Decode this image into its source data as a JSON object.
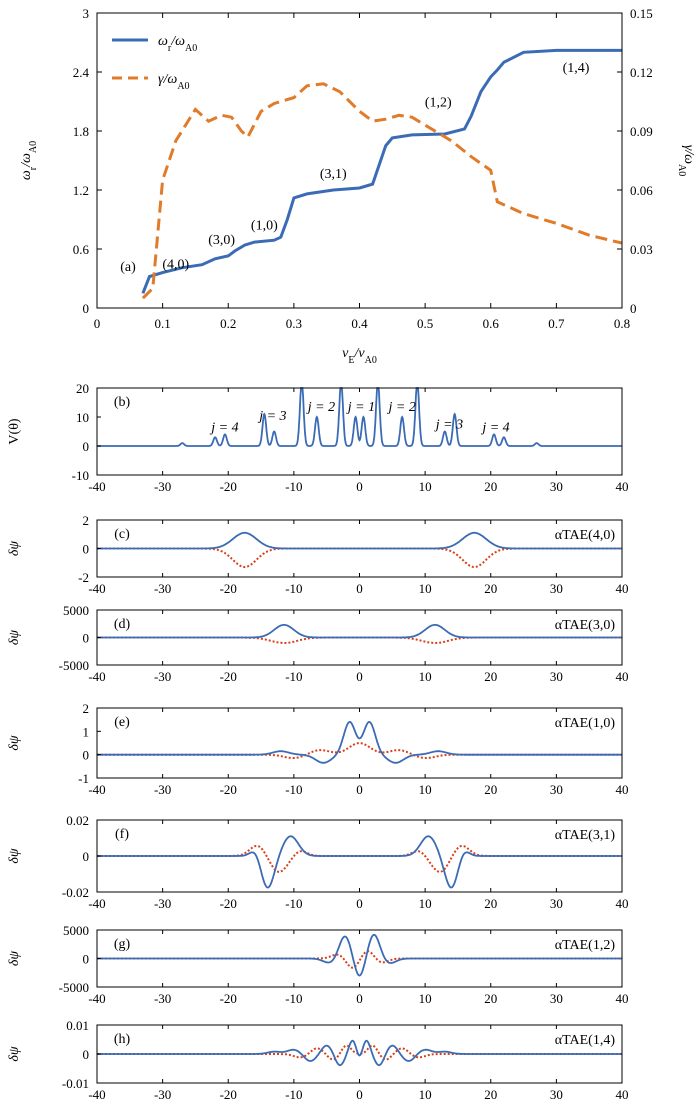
{
  "colors": {
    "omega": "#3b6bb5",
    "gamma": "#e07b2a",
    "red": "#d9401a",
    "axis": "#000000"
  },
  "chart_data": [
    {
      "id": "a",
      "type": "line",
      "panel_label": "(a)",
      "xlabel": "vE/vA0",
      "ylabel_left": "ωr/ωA0",
      "ylabel_right": "γ/ωA0",
      "xlim": [
        0,
        0.8
      ],
      "ylim_left": [
        0,
        3
      ],
      "ylim_right": [
        0,
        0.15
      ],
      "xticks": [
        "0",
        "0.1",
        "0.2",
        "0.3",
        "0.4",
        "0.5",
        "0.6",
        "0.7",
        "0.8"
      ],
      "yticks_left": [
        "0",
        "0.6",
        "1.2",
        "1.8",
        "2.4",
        "3"
      ],
      "yticks_right": [
        "0",
        "0.03",
        "0.06",
        "0.09",
        "0.12",
        "0.15"
      ],
      "legend": [
        "ωr/ωA0",
        "γ/ωA0"
      ],
      "legend_position": "top-left",
      "series": [
        {
          "name": "ωr/ωA0",
          "axis": "left",
          "style": "solid",
          "points": [
            [
              0.07,
              0.15
            ],
            [
              0.08,
              0.32
            ],
            [
              0.1,
              0.36
            ],
            [
              0.13,
              0.41
            ],
            [
              0.16,
              0.44
            ],
            [
              0.18,
              0.5
            ],
            [
              0.2,
              0.53
            ],
            [
              0.21,
              0.58
            ],
            [
              0.225,
              0.64
            ],
            [
              0.24,
              0.67
            ],
            [
              0.27,
              0.69
            ],
            [
              0.28,
              0.72
            ],
            [
              0.29,
              0.9
            ],
            [
              0.3,
              1.12
            ],
            [
              0.32,
              1.16
            ],
            [
              0.36,
              1.2
            ],
            [
              0.4,
              1.22
            ],
            [
              0.42,
              1.26
            ],
            [
              0.44,
              1.65
            ],
            [
              0.45,
              1.73
            ],
            [
              0.48,
              1.76
            ],
            [
              0.53,
              1.77
            ],
            [
              0.56,
              1.82
            ],
            [
              0.57,
              1.95
            ],
            [
              0.585,
              2.2
            ],
            [
              0.6,
              2.35
            ],
            [
              0.61,
              2.42
            ],
            [
              0.62,
              2.5
            ],
            [
              0.65,
              2.6
            ],
            [
              0.7,
              2.62
            ],
            [
              0.8,
              2.62
            ]
          ]
        },
        {
          "name": "γ/ωA0",
          "axis": "right",
          "style": "dashed",
          "points": [
            [
              0.07,
              0.005
            ],
            [
              0.085,
              0.01
            ],
            [
              0.1,
              0.065
            ],
            [
              0.12,
              0.085
            ],
            [
              0.15,
              0.101
            ],
            [
              0.17,
              0.095
            ],
            [
              0.19,
              0.098
            ],
            [
              0.205,
              0.097
            ],
            [
              0.22,
              0.09
            ],
            [
              0.23,
              0.087
            ],
            [
              0.25,
              0.1
            ],
            [
              0.27,
              0.104
            ],
            [
              0.3,
              0.107
            ],
            [
              0.32,
              0.113
            ],
            [
              0.345,
              0.114
            ],
            [
              0.37,
              0.11
            ],
            [
              0.4,
              0.1
            ],
            [
              0.42,
              0.095
            ],
            [
              0.44,
              0.096
            ],
            [
              0.46,
              0.098
            ],
            [
              0.48,
              0.097
            ],
            [
              0.5,
              0.093
            ],
            [
              0.54,
              0.085
            ],
            [
              0.57,
              0.077
            ],
            [
              0.6,
              0.07
            ],
            [
              0.61,
              0.054
            ],
            [
              0.65,
              0.048
            ],
            [
              0.7,
              0.043
            ],
            [
              0.75,
              0.037
            ],
            [
              0.8,
              0.033
            ]
          ]
        }
      ],
      "annotations": [
        {
          "text": "(4,0)",
          "x": 0.12,
          "y": 0.4
        },
        {
          "text": "(3,0)",
          "x": 0.19,
          "y": 0.65
        },
        {
          "text": "(1,0)",
          "x": 0.255,
          "y": 0.8
        },
        {
          "text": "(3,1)",
          "x": 0.36,
          "y": 1.32
        },
        {
          "text": "(1,2)",
          "x": 0.52,
          "y": 2.05
        },
        {
          "text": "(1,4)",
          "x": 0.73,
          "y": 2.4
        }
      ]
    },
    {
      "id": "b",
      "type": "line",
      "panel_label": "(b)",
      "ylabel": "V(θ)",
      "xlim": [
        -40,
        40
      ],
      "ylim": [
        -10,
        20
      ],
      "yticks": [
        "-10",
        "0",
        "10",
        "20"
      ],
      "xticks": [
        "-40",
        "-30",
        "-20",
        "-10",
        "0",
        "10",
        "20",
        "30",
        "40"
      ],
      "spikes": [
        [
          -27,
          1
        ],
        [
          -22,
          3
        ],
        [
          -20.5,
          4
        ],
        [
          -14.5,
          11
        ],
        [
          -13,
          5
        ],
        [
          -8.8,
          22
        ],
        [
          -6.5,
          10
        ],
        [
          -2.8,
          22
        ],
        [
          -0.6,
          10
        ],
        [
          0.6,
          10
        ],
        [
          2.8,
          22
        ],
        [
          6.5,
          10
        ],
        [
          8.8,
          22
        ],
        [
          13,
          5
        ],
        [
          14.5,
          11
        ],
        [
          20.5,
          4
        ],
        [
          22,
          3
        ],
        [
          27,
          1
        ]
      ],
      "annotations": [
        {
          "text": "j = 4",
          "x": -20.5,
          "y": 5
        },
        {
          "text": "j = 3",
          "x": -13.2,
          "y": 9
        },
        {
          "text": "j = 2",
          "x": -5.8,
          "y": 12
        },
        {
          "text": "j = 1",
          "x": 0.3,
          "y": 12
        },
        {
          "text": "j = 2",
          "x": 6.5,
          "y": 12
        },
        {
          "text": "j = 3",
          "x": 13.7,
          "y": 6
        },
        {
          "text": "j = 4",
          "x": 20.8,
          "y": 5
        }
      ]
    },
    {
      "id": "c",
      "type": "line",
      "panel_label": "(c)",
      "ylabel": "δψ",
      "mode_label": "αTAE(4,0)",
      "xlim": [
        -40,
        40
      ],
      "ylim": [
        -2,
        2
      ],
      "yticks": [
        "-2",
        "0",
        "2"
      ],
      "xticks": [
        "-40",
        "-30",
        "-20",
        "-10",
        "0",
        "10",
        "20",
        "30",
        "40"
      ],
      "blue_bumps": [
        [
          -17.5,
          1.1,
          1.8
        ],
        [
          17.5,
          1.1,
          1.8
        ]
      ],
      "red_bumps": [
        [
          -17.5,
          -1.3,
          1.8
        ],
        [
          17.5,
          -1.3,
          1.8
        ]
      ]
    },
    {
      "id": "d",
      "type": "line",
      "panel_label": "(d)",
      "ylabel": "δψ",
      "mode_label": "αTAE(3,0)",
      "xlim": [
        -40,
        40
      ],
      "ylim": [
        -5000,
        5000
      ],
      "yticks": [
        "-5000",
        "0",
        "5000"
      ],
      "xticks": [
        "-40",
        "-30",
        "-20",
        "-10",
        "0",
        "10",
        "20",
        "30",
        "40"
      ],
      "blue_bumps": [
        [
          -11.5,
          2300,
          1.5
        ],
        [
          11.5,
          2300,
          1.5
        ]
      ],
      "red_bumps": [
        [
          -11.5,
          -1000,
          2.0
        ],
        [
          11.5,
          -1000,
          2.0
        ]
      ]
    },
    {
      "id": "e",
      "type": "line",
      "panel_label": "(e)",
      "ylabel": "δψ",
      "mode_label": "αTAE(1,0)",
      "xlim": [
        -40,
        40
      ],
      "ylim": [
        -1,
        2
      ],
      "yticks": [
        "-1",
        "0",
        "1",
        "2"
      ],
      "xticks": [
        "-40",
        "-30",
        "-20",
        "-10",
        "0",
        "10",
        "20",
        "30",
        "40"
      ],
      "blue_bumps": [
        [
          -1.5,
          1.4,
          0.9
        ],
        [
          1.5,
          1.4,
          0.9
        ],
        [
          -5.5,
          -0.35,
          1.2
        ],
        [
          5.5,
          -0.35,
          1.2
        ],
        [
          -12,
          0.15,
          1.2
        ],
        [
          12,
          0.15,
          1.2
        ]
      ],
      "red_bumps": [
        [
          0,
          0.5,
          1.6
        ],
        [
          -6,
          0.2,
          1.5
        ],
        [
          6,
          0.2,
          1.5
        ],
        [
          -10,
          -0.15,
          1.5
        ],
        [
          10,
          -0.15,
          1.5
        ]
      ]
    },
    {
      "id": "f",
      "type": "line",
      "panel_label": "(f)",
      "ylabel": "δψ",
      "mode_label": "αTAE(3,1)",
      "xlim": [
        -40,
        40
      ],
      "ylim": [
        -0.02,
        0.02
      ],
      "yticks": [
        "-0.02",
        "0",
        "0.02"
      ],
      "xticks": [
        "-40",
        "-30",
        "-20",
        "-10",
        "0",
        "10",
        "20",
        "30",
        "40"
      ],
      "blue_bumps": [
        [
          -14,
          -0.018,
          1.0
        ],
        [
          -10.5,
          0.011,
          1.2
        ],
        [
          -15.8,
          0.004,
          0.8
        ],
        [
          14,
          -0.018,
          1.0
        ],
        [
          10.5,
          0.011,
          1.2
        ],
        [
          15.8,
          0.004,
          0.8
        ]
      ],
      "red_bumps": [
        [
          -12.3,
          -0.009,
          1.3
        ],
        [
          -15.5,
          0.006,
          1.2
        ],
        [
          -9,
          0.003,
          1.0
        ],
        [
          12.3,
          -0.009,
          1.3
        ],
        [
          15.5,
          0.006,
          1.2
        ],
        [
          9,
          0.003,
          1.0
        ]
      ]
    },
    {
      "id": "g",
      "type": "line",
      "panel_label": "(g)",
      "ylabel": "δψ",
      "mode_label": "αTAE(1,2)",
      "xlim": [
        -40,
        40
      ],
      "ylim": [
        -5000,
        5000
      ],
      "yticks": [
        "-5000",
        "0",
        "5000"
      ],
      "xticks": [
        "-40",
        "-30",
        "-20",
        "-10",
        "0",
        "10",
        "20",
        "30",
        "40"
      ],
      "blue_bumps": [
        [
          -2.2,
          4000,
          0.9
        ],
        [
          2.2,
          4300,
          0.9
        ],
        [
          0,
          -3400,
          0.8
        ],
        [
          -4.5,
          -800,
          1.0
        ],
        [
          4.5,
          -900,
          1.0
        ]
      ],
      "red_bumps": [
        [
          -1,
          -1800,
          1.0
        ],
        [
          1.2,
          1500,
          1.0
        ],
        [
          -3.2,
          800,
          1.0
        ],
        [
          3.3,
          -800,
          1.0
        ]
      ]
    },
    {
      "id": "h",
      "type": "line",
      "panel_label": "(h)",
      "ylabel": "δψ",
      "mode_label": "αTAE(1,4)",
      "xlim": [
        -40,
        40
      ],
      "ylim": [
        -0.01,
        0.01
      ],
      "yticks": [
        "-0.01",
        "0",
        "0.01"
      ],
      "xticks": [
        "-40",
        "-30",
        "-20",
        "-10",
        "0",
        "10",
        "20",
        "30",
        "40"
      ],
      "blue_bumps": [
        [
          -1,
          0.005,
          0.6
        ],
        [
          1,
          0.005,
          0.6
        ],
        [
          0,
          -0.003,
          0.5
        ],
        [
          -3,
          -0.004,
          0.7
        ],
        [
          3,
          -0.004,
          0.7
        ],
        [
          -5,
          0.003,
          0.8
        ],
        [
          5,
          0.003,
          0.8
        ],
        [
          -7.5,
          -0.0025,
          0.9
        ],
        [
          7.5,
          -0.0025,
          0.9
        ],
        [
          -10,
          0.0015,
          1.0
        ],
        [
          10,
          0.0015,
          1.0
        ],
        [
          -13,
          0.0008,
          1.0
        ],
        [
          13,
          0.0008,
          1.0
        ]
      ],
      "red_bumps": [
        [
          -2,
          0.003,
          0.7
        ],
        [
          2,
          0.003,
          0.7
        ],
        [
          -4,
          -0.002,
          0.8
        ],
        [
          4,
          -0.002,
          0.8
        ],
        [
          -6.5,
          0.002,
          0.9
        ],
        [
          6.5,
          0.002,
          0.9
        ],
        [
          -9,
          -0.0012,
          1.0
        ],
        [
          9,
          -0.0012,
          1.0
        ]
      ]
    }
  ]
}
